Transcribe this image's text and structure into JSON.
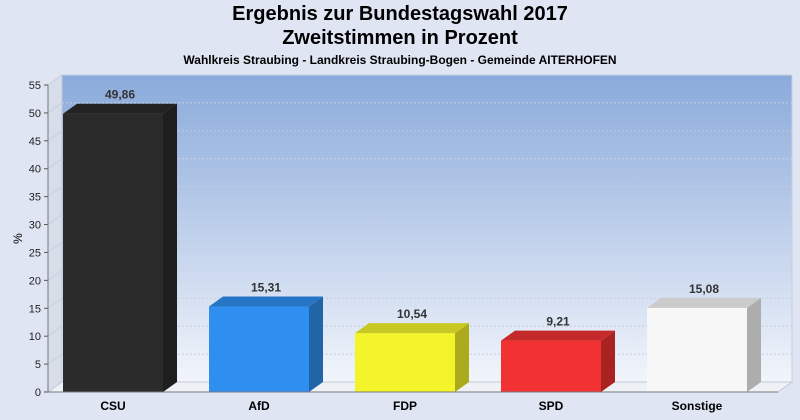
{
  "chart_data": {
    "type": "bar",
    "title": "Ergebnis zur Bundestagswahl 2017",
    "subtitle": "Zweitstimmen in Prozent",
    "caption": "Wahlkreis Straubing - Landkreis Straubing-Bogen - Gemeinde AITERHOFEN",
    "xlabel": "",
    "ylabel": "%",
    "ylim": [
      0,
      55
    ],
    "yticks": [
      0,
      5,
      10,
      15,
      20,
      25,
      30,
      35,
      40,
      45,
      50,
      55
    ],
    "categories": [
      "CSU",
      "AfD",
      "FDP",
      "SPD",
      "Sonstige"
    ],
    "values": [
      49.86,
      15.31,
      10.54,
      9.21,
      15.08
    ],
    "value_labels": [
      "49,86",
      "15,31",
      "10,54",
      "9,21",
      "15,08"
    ],
    "colors": [
      "#2b2b2b",
      "#2f8ff0",
      "#f4f42a",
      "#f23232",
      "#f7f7f7"
    ],
    "grid": true,
    "legend": "none"
  }
}
